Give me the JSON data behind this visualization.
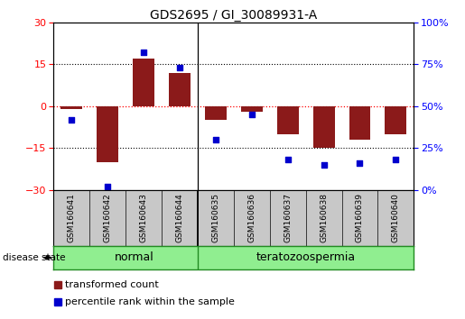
{
  "title": "GDS2695 / GI_30089931-A",
  "samples": [
    "GSM160641",
    "GSM160642",
    "GSM160643",
    "GSM160644",
    "GSM160635",
    "GSM160636",
    "GSM160637",
    "GSM160638",
    "GSM160639",
    "GSM160640"
  ],
  "red_values": [
    -1.0,
    -20.0,
    17.0,
    12.0,
    -5.0,
    -2.0,
    -10.0,
    -15.0,
    -12.0,
    -10.0
  ],
  "blue_values": [
    42,
    2,
    82,
    73,
    30,
    45,
    18,
    15,
    16,
    18
  ],
  "ylim_left": [
    -30,
    30
  ],
  "ylim_right": [
    0,
    100
  ],
  "yticks_left": [
    -30,
    -15,
    0,
    15,
    30
  ],
  "yticks_right": [
    0,
    25,
    50,
    75,
    100
  ],
  "ytick_labels_right": [
    "0%",
    "25%",
    "50%",
    "75%",
    "100%"
  ],
  "hlines": [
    -15,
    0,
    15
  ],
  "bar_color": "#8B1A1A",
  "square_color": "#0000CD",
  "separator_after": 3,
  "group_labels": [
    "normal",
    "teratozoospermia"
  ],
  "group_color": "#90EE90",
  "group_border_color": "#228B22",
  "sample_box_color": "#C8C8C8",
  "label_red": "transformed count",
  "label_blue": "percentile rank within the sample",
  "disease_state_label": "disease state",
  "background_color": "#FFFFFF"
}
